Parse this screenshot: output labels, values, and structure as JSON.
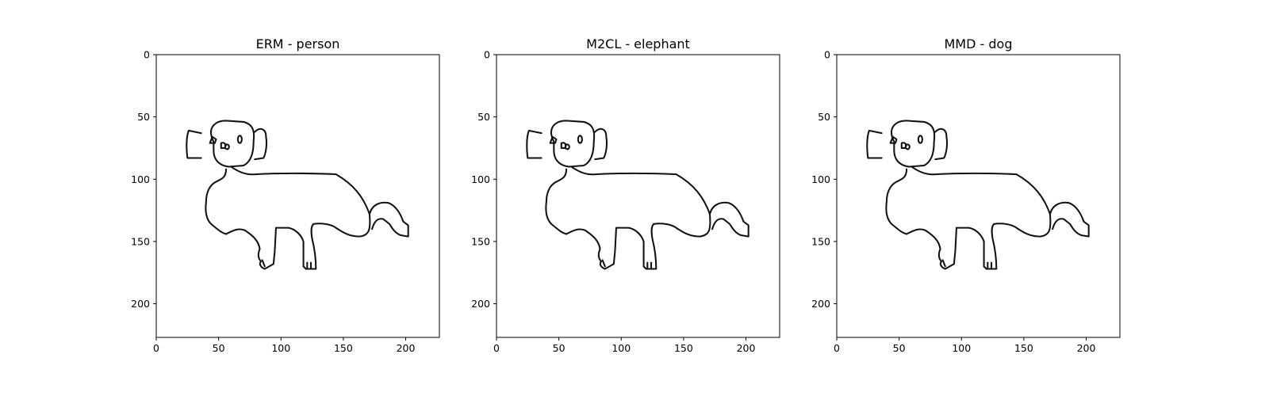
{
  "chart_data": [
    {
      "type": "image",
      "title": "ERM - person",
      "xlim": [
        0,
        227
      ],
      "ylim": [
        227,
        0
      ],
      "xticks": [
        0,
        50,
        100,
        150,
        200
      ],
      "yticks": [
        0,
        50,
        100,
        150,
        200
      ],
      "grid": false,
      "image_subject": "dog line sketch"
    },
    {
      "type": "image",
      "title": "M2CL - elephant",
      "xlim": [
        0,
        227
      ],
      "ylim": [
        227,
        0
      ],
      "xticks": [
        0,
        50,
        100,
        150,
        200
      ],
      "yticks": [
        0,
        50,
        100,
        150,
        200
      ],
      "grid": false,
      "image_subject": "dog line sketch"
    },
    {
      "type": "image",
      "title": "MMD - dog",
      "xlim": [
        0,
        227
      ],
      "ylim": [
        227,
        0
      ],
      "xticks": [
        0,
        50,
        100,
        150,
        200
      ],
      "yticks": [
        0,
        50,
        100,
        150,
        200
      ],
      "grid": false,
      "image_subject": "dog line sketch"
    }
  ],
  "colors": {
    "background": "#ffffff",
    "axes": "#000000",
    "sketch": "#111111"
  }
}
